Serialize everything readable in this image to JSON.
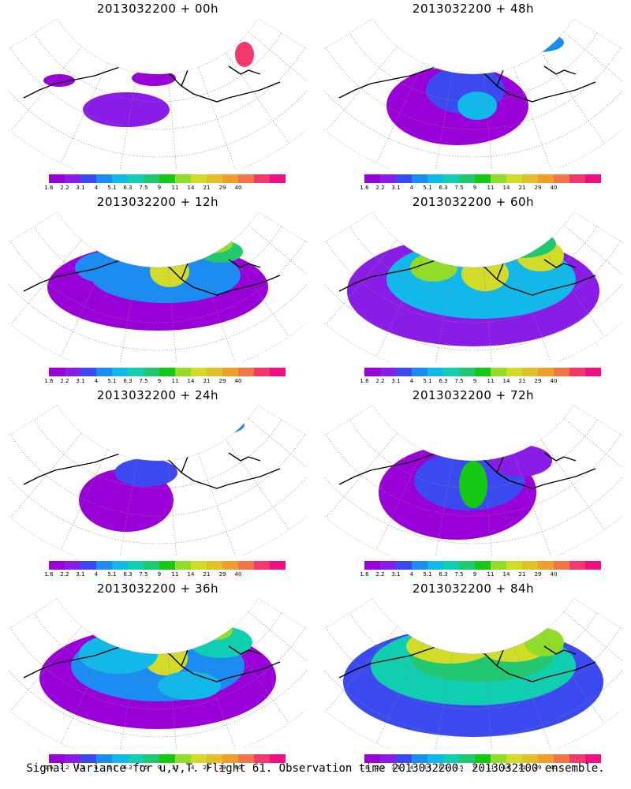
{
  "footer_caption": "Signal Variance for u,v,T. Flight 61. Observation time 2013032200. 2013032100 ensemble.",
  "colorbar": {
    "colors": [
      "#9a00d8",
      "#8a1ce8",
      "#3b4af0",
      "#1a8cf2",
      "#10b9ea",
      "#10cfb0",
      "#20c870",
      "#14c814",
      "#90dc28",
      "#d2dc28",
      "#e2be28",
      "#ef9e2a",
      "#f27448",
      "#f2386c",
      "#ee1080"
    ],
    "labels": [
      "1.6",
      "2.2",
      "3.1",
      "4",
      "5.1",
      "6.3",
      "7.5",
      "9",
      "11",
      "14",
      "21",
      "29",
      "40"
    ]
  },
  "panels": [
    {
      "title": "2013032200 + 00h",
      "level": 0
    },
    {
      "title": "2013032200 + 48h",
      "level": 4
    },
    {
      "title": "2013032200 + 12h",
      "level": 1
    },
    {
      "title": "2013032200 + 60h",
      "level": 5
    },
    {
      "title": "2013032200 + 24h",
      "level": 2
    },
    {
      "title": "2013032200 + 72h",
      "level": 6
    },
    {
      "title": "2013032200 + 36h",
      "level": 3
    },
    {
      "title": "2013032200 + 84h",
      "level": 7
    }
  ]
}
